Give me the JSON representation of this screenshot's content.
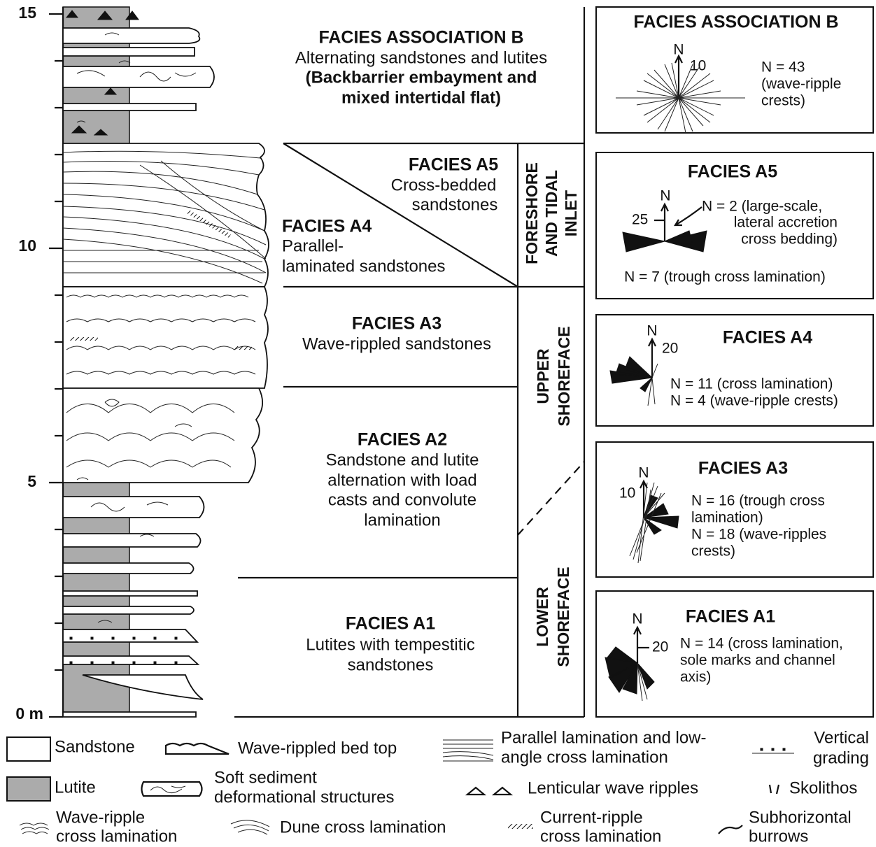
{
  "scale": {
    "labels": [
      "15",
      "10",
      "5",
      "0 m"
    ]
  },
  "facies_labels": [
    {
      "title": "FACIES ASSOCIATION B",
      "lines": [
        "Alternating sandstones and lutites"
      ],
      "emphasis_lines": [
        "(Backbarrier embayment and",
        "mixed intertidal flat)"
      ]
    },
    {
      "title": "FACIES A5",
      "lines": [
        "Cross-bedded",
        "sandstones"
      ]
    },
    {
      "title": "FACIES A4",
      "lines": [
        "Parallel-",
        "laminated sandstones"
      ]
    },
    {
      "title": "FACIES A3",
      "lines": [
        "Wave-rippled sandstones"
      ]
    },
    {
      "title": "FACIES A2",
      "lines": [
        "Sandstone and lutite",
        "alternation with load",
        "casts and convolute",
        "lamination"
      ]
    },
    {
      "title": "FACIES A1",
      "lines": [
        "Lutites with tempestitic",
        "sandstones"
      ]
    }
  ],
  "environments": [
    {
      "lines": [
        "FORESHORE",
        "AND TIDAL",
        "INLET"
      ]
    },
    {
      "lines": [
        "UPPER",
        "SHOREFACE"
      ]
    },
    {
      "lines": [
        "LOWER",
        "SHOREFACE"
      ]
    }
  ],
  "rose_panels": [
    {
      "title": "FACIES ASSOCIATION B",
      "north": "N",
      "scale": "10",
      "notes": [
        "N = 43",
        "(wave-ripple",
        "crests)"
      ]
    },
    {
      "title": "FACIES A5",
      "north": "N",
      "scale": "25",
      "notes": [
        "N = 2 (large-scale,",
        "lateral accretion",
        "cross bedding)",
        "N = 7 (trough cross lamination)"
      ]
    },
    {
      "title": "FACIES A4",
      "north": "N",
      "scale": "20",
      "notes": [
        "N = 11 (cross lamination)",
        "N = 4 (wave-ripple crests)"
      ]
    },
    {
      "title": "FACIES A3",
      "north": "N",
      "scale": "10",
      "notes": [
        "N = 16 (trough cross",
        "lamination)",
        "N = 18 (wave-ripples",
        "crests)"
      ]
    },
    {
      "title": "FACIES A1",
      "north": "N",
      "scale": "20",
      "notes": [
        "N = 14 (cross lamination,",
        "sole marks and channel",
        "axis)"
      ]
    }
  ],
  "legend": [
    {
      "lines": [
        "Sandstone"
      ]
    },
    {
      "lines": [
        "Wave-rippled bed top"
      ]
    },
    {
      "lines": [
        "Parallel lamination and low-",
        "angle cross lamination"
      ]
    },
    {
      "lines": [
        "Vertical",
        "grading"
      ]
    },
    {
      "lines": [
        "Lutite"
      ]
    },
    {
      "lines": [
        "Soft sediment",
        "deformational structures"
      ]
    },
    {
      "lines": [
        "Lenticular wave ripples"
      ]
    },
    {
      "lines": [
        "Skolithos"
      ]
    },
    {
      "lines": [
        "Wave-ripple",
        "cross lamination"
      ]
    },
    {
      "lines": [
        "Dune cross lamination"
      ]
    },
    {
      "lines": [
        "Current-ripple",
        "cross lamination"
      ]
    },
    {
      "lines": [
        "Subhorizontal",
        "burrows"
      ]
    }
  ]
}
